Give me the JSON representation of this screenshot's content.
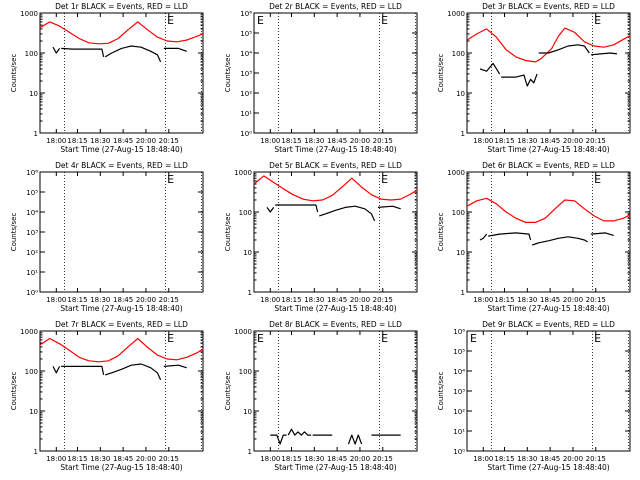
{
  "colors": {
    "events": "#000000",
    "lld": "#ff0000",
    "background": "#ffffff",
    "axes": "#000000"
  },
  "common": {
    "ylabel": "Counts/sec",
    "xlabel": "Start Time (27-Aug-15 18:48:40)",
    "x_ticks": [
      "18:00",
      "18:15",
      "18:30",
      "18:45",
      "20:00",
      "20:15"
    ],
    "eclipse_marker": "E"
  },
  "chart_data": [
    {
      "type": "line",
      "title": "Det 1r BLACK = Events, RED = LLD",
      "yscale": "log",
      "ylim": [
        1,
        1000
      ],
      "y_ticks": [
        "1",
        "10",
        "100",
        "1000"
      ],
      "eclipse_marker_pos": "right",
      "series": [
        {
          "color": "lld",
          "x": [
            0,
            0.06,
            0.12,
            0.18,
            0.24,
            0.3,
            0.36,
            0.42,
            0.48,
            0.54,
            0.6,
            0.66,
            0.72,
            0.78,
            0.84,
            0.9,
            0.96,
            1.0
          ],
          "y": [
            430,
            600,
            470,
            330,
            230,
            180,
            170,
            175,
            230,
            380,
            600,
            380,
            250,
            200,
            190,
            210,
            260,
            300
          ]
        },
        {
          "color": "events",
          "segments": [
            {
              "x": [
                0.08,
                0.1,
                0.12
              ],
              "y": [
                140,
                100,
                130
              ]
            },
            {
              "x": [
                0.13,
                0.2,
                0.3,
                0.38,
                0.39
              ],
              "y": [
                130,
                125,
                125,
                125,
                80
              ]
            },
            {
              "x": [
                0.4,
                0.44,
                0.5,
                0.56,
                0.62,
                0.68,
                0.72,
                0.74
              ],
              "y": [
                80,
                100,
                130,
                150,
                140,
                110,
                90,
                60
              ]
            },
            {
              "x": [
                0.76,
                0.85,
                0.9
              ],
              "y": [
                130,
                130,
                110
              ]
            }
          ]
        }
      ]
    },
    {
      "type": "line",
      "title": "Det 2r BLACK = Events, RED = LLD",
      "yscale": "log",
      "ylim": [
        1,
        1000000
      ],
      "y_ticks": [
        "10⁰",
        "10¹",
        "10²",
        "10³",
        "10⁴",
        "10⁵",
        "10⁶"
      ],
      "eclipse_marker_pos": "both",
      "series": []
    },
    {
      "type": "line",
      "title": "Det 3r BLACK = Events, RED = LLD",
      "yscale": "log",
      "ylim": [
        1,
        1000
      ],
      "y_ticks": [
        "1",
        "10",
        "100",
        "1000"
      ],
      "eclipse_marker_pos": "right",
      "series": [
        {
          "color": "lld",
          "x": [
            0,
            0.06,
            0.12,
            0.18,
            0.24,
            0.3,
            0.36,
            0.42,
            0.45,
            0.48,
            0.52,
            0.56,
            0.6,
            0.66,
            0.72,
            0.78,
            0.84,
            0.9,
            0.96,
            1.0
          ],
          "y": [
            210,
            300,
            400,
            250,
            120,
            80,
            65,
            60,
            70,
            90,
            130,
            260,
            420,
            330,
            190,
            150,
            140,
            160,
            220,
            270
          ]
        },
        {
          "color": "events",
          "segments": [
            {
              "x": [
                0.08,
                0.12,
                0.16,
                0.2
              ],
              "y": [
                40,
                35,
                55,
                30
              ]
            },
            {
              "x": [
                0.21,
                0.3,
                0.35,
                0.36,
                0.37,
                0.39,
                0.41,
                0.43
              ],
              "y": [
                25,
                25,
                28,
                20,
                15,
                22,
                18,
                30
              ]
            },
            {
              "x": [
                0.44,
                0.5,
                0.56,
                0.62,
                0.68,
                0.72,
                0.75
              ],
              "y": [
                100,
                100,
                120,
                150,
                160,
                150,
                100
              ]
            },
            {
              "x": [
                0.76,
                0.82,
                0.88,
                0.92
              ],
              "y": [
                90,
                95,
                100,
                95
              ]
            }
          ]
        }
      ]
    },
    {
      "type": "line",
      "title": "Det 4r BLACK = Events, RED = LLD",
      "yscale": "log",
      "ylim": [
        1,
        1000000
      ],
      "y_ticks": [
        "10⁰",
        "10¹",
        "10²",
        "10³",
        "10⁴",
        "10⁵",
        "10⁶"
      ],
      "eclipse_marker_pos": "right",
      "series": []
    },
    {
      "type": "line",
      "title": "Det 5r BLACK = Events, RED = LLD",
      "yscale": "log",
      "ylim": [
        1,
        1000
      ],
      "y_ticks": [
        "1",
        "10",
        "100",
        "1000"
      ],
      "eclipse_marker_pos": "right",
      "series": [
        {
          "color": "lld",
          "x": [
            0,
            0.06,
            0.12,
            0.18,
            0.24,
            0.3,
            0.36,
            0.42,
            0.48,
            0.54,
            0.6,
            0.66,
            0.72,
            0.78,
            0.84,
            0.9,
            0.96,
            1.0
          ],
          "y": [
            500,
            800,
            550,
            380,
            270,
            210,
            190,
            200,
            260,
            420,
            700,
            420,
            270,
            210,
            200,
            210,
            280,
            350
          ]
        },
        {
          "color": "events",
          "segments": [
            {
              "x": [
                0.08,
                0.1,
                0.12
              ],
              "y": [
                130,
                100,
                130
              ]
            },
            {
              "x": [
                0.13,
                0.2,
                0.3,
                0.38,
                0.39
              ],
              "y": [
                150,
                150,
                150,
                150,
                100
              ]
            },
            {
              "x": [
                0.4,
                0.44,
                0.5,
                0.56,
                0.62,
                0.68,
                0.72,
                0.74
              ],
              "y": [
                80,
                90,
                110,
                130,
                140,
                120,
                90,
                60
              ]
            },
            {
              "x": [
                0.76,
                0.85,
                0.9
              ],
              "y": [
                130,
                140,
                120
              ]
            }
          ]
        }
      ]
    },
    {
      "type": "line",
      "title": "Det 6r BLACK = Events, RED = LLD",
      "yscale": "log",
      "ylim": [
        1,
        1000
      ],
      "y_ticks": [
        "1",
        "10",
        "100",
        "1000"
      ],
      "eclipse_marker_pos": "right",
      "series": [
        {
          "color": "lld",
          "x": [
            0,
            0.06,
            0.12,
            0.18,
            0.24,
            0.3,
            0.36,
            0.42,
            0.48,
            0.54,
            0.6,
            0.66,
            0.72,
            0.78,
            0.84,
            0.9,
            0.96,
            1.0
          ],
          "y": [
            140,
            190,
            220,
            160,
            100,
            70,
            55,
            55,
            70,
            120,
            200,
            190,
            120,
            80,
            60,
            60,
            70,
            85
          ]
        },
        {
          "color": "events",
          "segments": [
            {
              "x": [
                0.08,
                0.1,
                0.12
              ],
              "y": [
                20,
                22,
                28
              ]
            },
            {
              "x": [
                0.13,
                0.2,
                0.3,
                0.38,
                0.39
              ],
              "y": [
                25,
                28,
                30,
                28,
                20
              ]
            },
            {
              "x": [
                0.4,
                0.44,
                0.5,
                0.56,
                0.62,
                0.68,
                0.72,
                0.74
              ],
              "y": [
                15,
                17,
                19,
                22,
                24,
                22,
                20,
                18
              ]
            },
            {
              "x": [
                0.76,
                0.85,
                0.9
              ],
              "y": [
                28,
                30,
                26
              ]
            }
          ]
        }
      ]
    },
    {
      "type": "line",
      "title": "Det 7r BLACK = Events, RED = LLD",
      "yscale": "log",
      "ylim": [
        1,
        1000
      ],
      "y_ticks": [
        "1",
        "10",
        "100",
        "1000"
      ],
      "eclipse_marker_pos": "right",
      "series": [
        {
          "color": "lld",
          "x": [
            0,
            0.06,
            0.12,
            0.18,
            0.24,
            0.3,
            0.36,
            0.42,
            0.48,
            0.54,
            0.6,
            0.66,
            0.72,
            0.78,
            0.84,
            0.9,
            0.96,
            1.0
          ],
          "y": [
            450,
            650,
            480,
            330,
            220,
            180,
            170,
            180,
            240,
            400,
            650,
            390,
            250,
            200,
            190,
            220,
            280,
            350
          ]
        },
        {
          "color": "events",
          "segments": [
            {
              "x": [
                0.08,
                0.1,
                0.12
              ],
              "y": [
                130,
                90,
                130
              ]
            },
            {
              "x": [
                0.13,
                0.2,
                0.3,
                0.38,
                0.39
              ],
              "y": [
                130,
                130,
                130,
                130,
                80
              ]
            },
            {
              "x": [
                0.4,
                0.44,
                0.5,
                0.56,
                0.62,
                0.68,
                0.72,
                0.74
              ],
              "y": [
                80,
                90,
                110,
                140,
                150,
                120,
                90,
                60
              ]
            },
            {
              "x": [
                0.76,
                0.85,
                0.9
              ],
              "y": [
                130,
                140,
                120
              ]
            }
          ]
        }
      ]
    },
    {
      "type": "line",
      "title": "Det 8r BLACK = Events, RED = LLD",
      "yscale": "log",
      "ylim": [
        1,
        1000
      ],
      "y_ticks": [
        "1",
        "10",
        "100",
        "1000"
      ],
      "eclipse_marker_pos": "both",
      "series": [
        {
          "color": "events",
          "segments": [
            {
              "x": [
                0.1,
                0.12,
                0.14,
                0.16,
                0.18,
                0.2
              ],
              "y": [
                2.5,
                2.5,
                2.5,
                1.5,
                2.5,
                2.5
              ]
            },
            {
              "x": [
                0.21,
                0.23,
                0.25,
                0.27,
                0.29,
                0.31,
                0.33,
                0.35
              ],
              "y": [
                2.5,
                3.5,
                2.5,
                3,
                2.5,
                3,
                2.5,
                2.5
              ]
            },
            {
              "x": [
                0.36,
                0.4,
                0.44,
                0.48
              ],
              "y": [
                2.5,
                2.5,
                2.5,
                2.5
              ]
            },
            {
              "x": [
                0.58,
                0.6,
                0.62,
                0.64,
                0.66
              ],
              "y": [
                1.5,
                2.5,
                1.5,
                2.5,
                1.5
              ]
            },
            {
              "x": [
                0.72,
                0.78,
                0.84,
                0.9
              ],
              "y": [
                2.5,
                2.5,
                2.5,
                2.5
              ]
            }
          ]
        }
      ]
    },
    {
      "type": "line",
      "title": "Det 9r BLACK = Events, RED = LLD",
      "yscale": "log",
      "ylim": [
        1,
        1000000
      ],
      "y_ticks": [
        "10⁰",
        "10¹",
        "10²",
        "10³",
        "10⁴",
        "10⁵",
        "10⁶"
      ],
      "eclipse_marker_pos": "both",
      "series": []
    }
  ]
}
